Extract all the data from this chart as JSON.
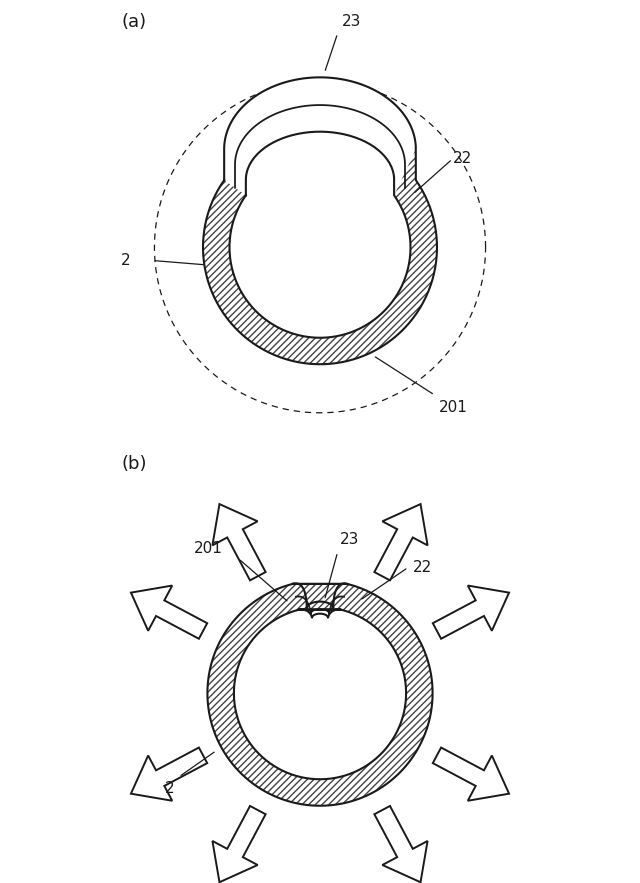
{
  "bg_color": "#ffffff",
  "line_color": "#1a1a1a",
  "hatch_color": "#444444",
  "lw": 1.5,
  "lw_thin": 1.0
}
